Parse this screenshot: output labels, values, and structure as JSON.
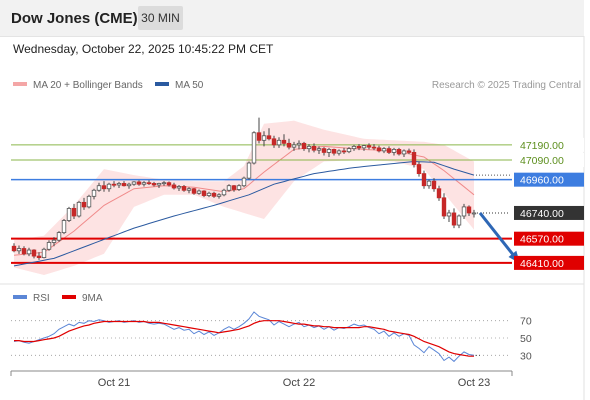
{
  "header": {
    "title": "Dow Jones (CME)",
    "timeframe": "30 MIN"
  },
  "timestamp": "Wednesday, October 22, 2025 10:45:22 PM CET",
  "legend": {
    "bollinger": "MA 20 + Bollinger Bands",
    "ma50": "MA 50"
  },
  "credit": "Research © 2025 Trading Central",
  "rsi_legend": {
    "rsi": "RSI",
    "ma9": "9MA"
  },
  "colors": {
    "bollinger": "#f4a6a6",
    "ma50": "#2b5aa0",
    "up_candle": "#ffffff",
    "down_candle": "#c62828",
    "support": "#e00000",
    "pivot": "#3d7de0",
    "resistance": "#8ab64a",
    "last_price": "#333333",
    "arrow": "#2e67b5"
  },
  "chart_data": [
    {
      "type": "candlestick",
      "title": "",
      "x_tick_labels": [
        "Oct 21",
        "Oct 22",
        "Oct 23"
      ],
      "y_range": [
        46330,
        47460
      ],
      "ohlc": [
        [
          46520,
          46540,
          46480,
          46490
        ],
        [
          46490,
          46525,
          46470,
          46505
        ],
        [
          46505,
          46520,
          46460,
          46470
        ],
        [
          46470,
          46510,
          46455,
          46495
        ],
        [
          46495,
          46500,
          46440,
          46455
        ],
        [
          46455,
          46480,
          46430,
          46445
        ],
        [
          46445,
          46510,
          46440,
          46500
        ],
        [
          46500,
          46560,
          46490,
          46545
        ],
        [
          46545,
          46580,
          46520,
          46560
        ],
        [
          46560,
          46620,
          46550,
          46610
        ],
        [
          46610,
          46700,
          46600,
          46690
        ],
        [
          46690,
          46780,
          46680,
          46770
        ],
        [
          46770,
          46800,
          46700,
          46720
        ],
        [
          46720,
          46820,
          46710,
          46810
        ],
        [
          46810,
          46840,
          46760,
          46780
        ],
        [
          46780,
          46860,
          46770,
          46850
        ],
        [
          46850,
          46900,
          46830,
          46890
        ],
        [
          46890,
          46940,
          46880,
          46920
        ],
        [
          46920,
          46950,
          46880,
          46900
        ],
        [
          46900,
          46940,
          46880,
          46930
        ],
        [
          46930,
          46950,
          46910,
          46925
        ],
        [
          46925,
          46945,
          46905,
          46935
        ],
        [
          46935,
          46950,
          46915,
          46920
        ],
        [
          46920,
          46940,
          46900,
          46930
        ],
        [
          46930,
          46950,
          46920,
          46945
        ],
        [
          46945,
          46955,
          46920,
          46930
        ],
        [
          46930,
          46950,
          46915,
          46940
        ],
        [
          46940,
          46955,
          46925,
          46935
        ],
        [
          46935,
          46945,
          46915,
          46925
        ],
        [
          46925,
          46940,
          46905,
          46935
        ],
        [
          46935,
          46950,
          46920,
          46940
        ],
        [
          46940,
          46948,
          46915,
          46925
        ],
        [
          46925,
          46940,
          46895,
          46905
        ],
        [
          46905,
          46925,
          46885,
          46915
        ],
        [
          46915,
          46925,
          46880,
          46890
        ],
        [
          46890,
          46910,
          46870,
          46900
        ],
        [
          46900,
          46905,
          46860,
          46870
        ],
        [
          46870,
          46895,
          46860,
          46885
        ],
        [
          46885,
          46890,
          46845,
          46855
        ],
        [
          46855,
          46880,
          46845,
          46870
        ],
        [
          46870,
          46880,
          46840,
          46850
        ],
        [
          46850,
          46870,
          46835,
          46860
        ],
        [
          46860,
          46900,
          46850,
          46890
        ],
        [
          46890,
          46930,
          46880,
          46920
        ],
        [
          46920,
          46925,
          46880,
          46895
        ],
        [
          46895,
          46930,
          46885,
          46920
        ],
        [
          46920,
          46980,
          46910,
          46970
        ],
        [
          46970,
          47080,
          46960,
          47070
        ],
        [
          47070,
          47280,
          47060,
          47270
        ],
        [
          47270,
          47370,
          47200,
          47220
        ],
        [
          47220,
          47280,
          47180,
          47250
        ],
        [
          47250,
          47300,
          47220,
          47230
        ],
        [
          47230,
          47250,
          47170,
          47190
        ],
        [
          47190,
          47240,
          47170,
          47220
        ],
        [
          47220,
          47260,
          47180,
          47200
        ],
        [
          47200,
          47230,
          47160,
          47175
        ],
        [
          47175,
          47210,
          47150,
          47190
        ],
        [
          47190,
          47220,
          47160,
          47200
        ],
        [
          47200,
          47210,
          47150,
          47165
        ],
        [
          47165,
          47195,
          47140,
          47180
        ],
        [
          47180,
          47200,
          47140,
          47155
        ],
        [
          47155,
          47180,
          47130,
          47165
        ],
        [
          47165,
          47175,
          47120,
          47140
        ],
        [
          47140,
          47170,
          47110,
          47160
        ],
        [
          47160,
          47165,
          47120,
          47135
        ],
        [
          47135,
          47160,
          47120,
          47150
        ],
        [
          47150,
          47170,
          47130,
          47145
        ],
        [
          47145,
          47175,
          47135,
          47165
        ],
        [
          47165,
          47190,
          47150,
          47180
        ],
        [
          47180,
          47195,
          47155,
          47170
        ],
        [
          47170,
          47190,
          47150,
          47185
        ],
        [
          47185,
          47200,
          47160,
          47175
        ],
        [
          47175,
          47195,
          47155,
          47170
        ],
        [
          47170,
          47185,
          47140,
          47150
        ],
        [
          47150,
          47175,
          47135,
          47165
        ],
        [
          47165,
          47180,
          47130,
          47140
        ],
        [
          47140,
          47170,
          47120,
          47160
        ],
        [
          47160,
          47170,
          47120,
          47130
        ],
        [
          47130,
          47160,
          47110,
          47150
        ],
        [
          47150,
          47165,
          47130,
          47140
        ],
        [
          47140,
          47160,
          47040,
          47060
        ],
        [
          47060,
          47080,
          46980,
          47000
        ],
        [
          47000,
          47020,
          46900,
          46920
        ],
        [
          46920,
          46960,
          46900,
          46950
        ],
        [
          46950,
          46970,
          46880,
          46900
        ],
        [
          46900,
          46920,
          46820,
          46840
        ],
        [
          46840,
          46870,
          46700,
          46720
        ],
        [
          46720,
          46760,
          46680,
          46740
        ],
        [
          46740,
          46770,
          46640,
          46660
        ],
        [
          46660,
          46730,
          46640,
          46720
        ],
        [
          46720,
          46800,
          46700,
          46780
        ],
        [
          46780,
          46790,
          46720,
          46740
        ],
        [
          46740,
          46760,
          46710,
          46740
        ]
      ],
      "ma50_points": [
        [
          0,
          46390
        ],
        [
          8,
          46440
        ],
        [
          16,
          46540
        ],
        [
          24,
          46640
        ],
        [
          32,
          46720
        ],
        [
          40,
          46790
        ],
        [
          47,
          46860
        ],
        [
          52,
          46930
        ],
        [
          60,
          47000
        ],
        [
          68,
          47040
        ],
        [
          74,
          47060
        ],
        [
          80,
          47080
        ],
        [
          84,
          47075
        ],
        [
          88,
          47030
        ],
        [
          92,
          46990
        ]
      ],
      "bb_mid_points": [
        [
          0,
          46460
        ],
        [
          6,
          46480
        ],
        [
          12,
          46620
        ],
        [
          18,
          46790
        ],
        [
          24,
          46900
        ],
        [
          30,
          46920
        ],
        [
          36,
          46910
        ],
        [
          42,
          46880
        ],
        [
          46,
          46900
        ],
        [
          50,
          47010
        ],
        [
          56,
          47160
        ],
        [
          62,
          47180
        ],
        [
          70,
          47160
        ],
        [
          76,
          47150
        ],
        [
          82,
          47110
        ],
        [
          86,
          47020
        ],
        [
          92,
          46860
        ]
      ],
      "bb_upper_points": [
        [
          0,
          46560
        ],
        [
          6,
          46590
        ],
        [
          12,
          46790
        ],
        [
          18,
          47030
        ],
        [
          24,
          46990
        ],
        [
          30,
          46960
        ],
        [
          36,
          46950
        ],
        [
          42,
          46950
        ],
        [
          46,
          47050
        ],
        [
          50,
          47330
        ],
        [
          56,
          47350
        ],
        [
          62,
          47290
        ],
        [
          70,
          47230
        ],
        [
          76,
          47220
        ],
        [
          82,
          47210
        ],
        [
          86,
          47190
        ],
        [
          92,
          47080
        ]
      ],
      "bb_lower_points": [
        [
          0,
          46380
        ],
        [
          6,
          46330
        ],
        [
          12,
          46390
        ],
        [
          18,
          46470
        ],
        [
          24,
          46780
        ],
        [
          30,
          46860
        ],
        [
          36,
          46860
        ],
        [
          42,
          46780
        ],
        [
          46,
          46740
        ],
        [
          50,
          46700
        ],
        [
          56,
          46950
        ],
        [
          62,
          47080
        ],
        [
          70,
          47090
        ],
        [
          76,
          47080
        ],
        [
          82,
          47030
        ],
        [
          86,
          46870
        ],
        [
          92,
          46630
        ]
      ],
      "support_levels": [
        46570,
        46410
      ],
      "pivot_level": 46960,
      "resistance_levels": [
        47190,
        47090
      ],
      "last_price": 46740,
      "level_labels": {
        "r1": "47190.00",
        "r2": "47090.00",
        "pivot": "46960.00",
        "last": "46740.00",
        "s1": "46570.00",
        "s2": "46410.00"
      },
      "forecast_arrow": {
        "from": [
          92,
          46740
        ],
        "to": [
          102,
          46410
        ]
      },
      "legend": [
        "MA 20 + Bollinger Bands",
        "MA 50"
      ],
      "grid": false
    },
    {
      "type": "line",
      "title": "RSI",
      "y_range": [
        20,
        80
      ],
      "y_ticks": [
        70,
        50,
        30
      ],
      "y_tick_labels": [
        "70",
        "50",
        "30"
      ],
      "rsi_values": [
        46,
        47,
        45,
        44,
        46,
        48,
        50,
        52,
        55,
        60,
        63,
        66,
        64,
        68,
        67,
        70,
        69,
        71,
        70,
        68,
        69,
        70,
        68,
        69,
        70,
        68,
        69,
        67,
        66,
        67,
        66,
        63,
        60,
        62,
        59,
        60,
        55,
        58,
        54,
        57,
        53,
        56,
        60,
        63,
        60,
        63,
        67,
        72,
        80,
        75,
        73,
        71,
        65,
        69,
        66,
        63,
        66,
        68,
        63,
        65,
        62,
        64,
        60,
        63,
        59,
        62,
        61,
        63,
        66,
        64,
        65,
        62,
        60,
        55,
        58,
        52,
        56,
        52,
        55,
        53,
        42,
        38,
        33,
        40,
        36,
        32,
        24,
        28,
        23,
        29,
        34,
        31,
        30
      ],
      "ma9_values": [
        47,
        47,
        46,
        46,
        46,
        47,
        48,
        49,
        50,
        52,
        55,
        58,
        60,
        62,
        64,
        65,
        67,
        68,
        69,
        69,
        69,
        69,
        69,
        69,
        69,
        69,
        69,
        68,
        68,
        68,
        67,
        66,
        65,
        64,
        63,
        62,
        61,
        60,
        59,
        58,
        57,
        56,
        57,
        58,
        59,
        60,
        62,
        64,
        67,
        69,
        70,
        70,
        70,
        70,
        69,
        68,
        67,
        66,
        66,
        65,
        64,
        64,
        63,
        63,
        62,
        62,
        62,
        62,
        62,
        62,
        63,
        63,
        62,
        61,
        60,
        58,
        57,
        56,
        55,
        54,
        52,
        49,
        46,
        44,
        42,
        40,
        37,
        34,
        32,
        31,
        30,
        29,
        29
      ],
      "legend": [
        "RSI",
        "9MA"
      ]
    }
  ]
}
